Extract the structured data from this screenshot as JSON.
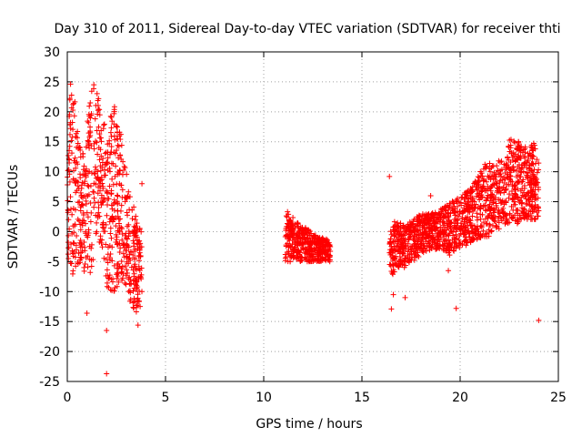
{
  "chart_data": {
    "type": "scatter",
    "title": "Day 310 of 2011, Sidereal Day-to-day VTEC variation (SDTVAR) for receiver thti",
    "xlabel": "GPS time / hours",
    "ylabel": "SDTVAR / TECUs",
    "xlim": [
      0,
      25
    ],
    "ylim": [
      -25,
      30
    ],
    "xticks": [
      0,
      5,
      10,
      15,
      20,
      25
    ],
    "yticks": [
      -25,
      -20,
      -15,
      -10,
      -5,
      0,
      5,
      10,
      15,
      20,
      25,
      30
    ],
    "grid": true,
    "marker": "+",
    "color": "#ff0000",
    "bands": [
      {
        "x": [
          0.0,
          0.15,
          0.3,
          0.5,
          0.7,
          0.9,
          1.1,
          1.3,
          1.5,
          1.7,
          1.9,
          2.0,
          2.2,
          2.4,
          2.6,
          2.8,
          3.0,
          3.2,
          3.4,
          3.6,
          3.8
        ],
        "low": [
          -5,
          -7,
          -8,
          -6,
          -5,
          -7,
          -8,
          -5,
          -3,
          -2,
          -6,
          -9,
          -11,
          -10,
          -9,
          -8,
          -10,
          -12,
          -13,
          -14,
          -12
        ],
        "high": [
          22,
          25,
          24,
          20,
          15,
          12,
          22,
          25,
          25,
          22,
          18,
          14,
          20,
          21,
          19,
          15,
          10,
          6,
          4,
          2,
          0
        ]
      },
      {
        "x": [
          11.1,
          11.3,
          11.6,
          12.0,
          12.4,
          12.8,
          13.2,
          13.4
        ],
        "low": [
          -5,
          -5,
          -5,
          -5,
          -5,
          -5,
          -5,
          -5
        ],
        "high": [
          4,
          3,
          2,
          1,
          0,
          -1,
          -1,
          -2
        ]
      },
      {
        "x": [
          16.4,
          16.8,
          17.2,
          17.6,
          18.0,
          18.5,
          19.0,
          19.5,
          20.0,
          20.5,
          21.0,
          21.4,
          21.8,
          22.2,
          22.6,
          23.0,
          23.4,
          23.8,
          24.0
        ],
        "low": [
          -8,
          -6,
          -6,
          -5,
          -4,
          -3,
          -3,
          -4,
          -3,
          -2,
          -1,
          -1,
          0,
          1,
          1,
          1,
          2,
          2,
          2
        ],
        "high": [
          1,
          2,
          1,
          2,
          3,
          3,
          4,
          5,
          6,
          7,
          10,
          12,
          11,
          13,
          16,
          15,
          14,
          15,
          12
        ]
      }
    ],
    "outliers": [
      [
        2.0,
        -23.7
      ],
      [
        1.0,
        -13.6
      ],
      [
        2.0,
        -16.5
      ],
      [
        3.6,
        -15.6
      ],
      [
        16.4,
        9.2
      ],
      [
        16.5,
        -12.9
      ],
      [
        19.8,
        -12.8
      ],
      [
        24.0,
        -14.8
      ],
      [
        19.4,
        -6.5
      ],
      [
        17.2,
        -11.0
      ],
      [
        3.8,
        8.0
      ],
      [
        18.5,
        6.0
      ],
      [
        20.6,
        5.0
      ],
      [
        16.6,
        -10.5
      ]
    ]
  }
}
